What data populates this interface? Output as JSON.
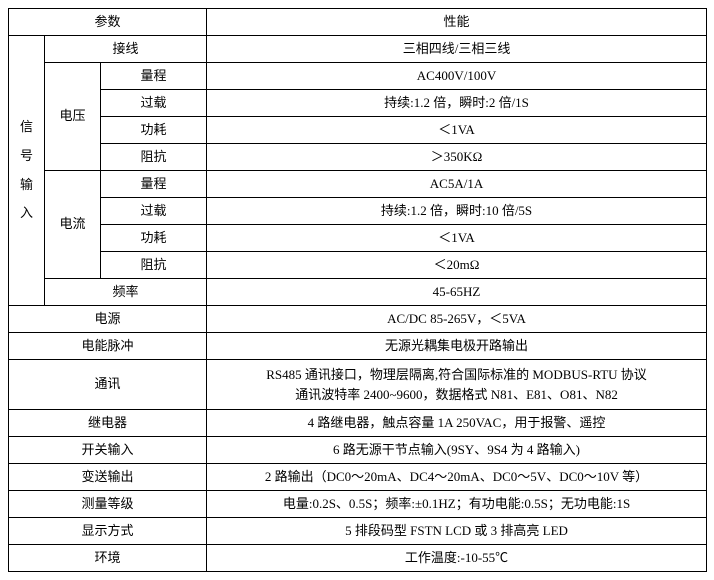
{
  "header": {
    "param": "参数",
    "perf": "性能"
  },
  "signal_input_label": "信\n号\n输\n入",
  "wiring": {
    "label": "接线",
    "value": "三相四线/三相三线"
  },
  "voltage": {
    "label": "电压",
    "range": {
      "label": "量程",
      "value": "AC400V/100V"
    },
    "overload": {
      "label": "过载",
      "value": "持续:1.2 倍，瞬时:2 倍/1S"
    },
    "power": {
      "label": "功耗",
      "value": "＜1VA"
    },
    "impedance": {
      "label": "阻抗",
      "value": "＞350KΩ"
    }
  },
  "current": {
    "label": "电流",
    "range": {
      "label": "量程",
      "value": "AC5A/1A"
    },
    "overload": {
      "label": "过载",
      "value": "持续:1.2 倍，瞬时:10 倍/5S"
    },
    "power": {
      "label": "功耗",
      "value": "＜1VA"
    },
    "impedance": {
      "label": "阻抗",
      "value": "＜20mΩ"
    }
  },
  "freq": {
    "label": "频率",
    "value": "45-65HZ"
  },
  "psu": {
    "label": "电源",
    "value": "AC/DC 85-265V，＜5VA"
  },
  "pulse": {
    "label": "电能脉冲",
    "value": "无源光耦集电极开路输出"
  },
  "comm": {
    "label": "通讯",
    "value": "RS485 通讯接口，物理层隔离,符合国际标准的 MODBUS-RTU 协议\n通讯波特率 2400~9600，数据格式 N81、E81、O81、N82"
  },
  "relay": {
    "label": "继电器",
    "value": "4 路继电器，触点容量 1A 250VAC，用于报警、遥控"
  },
  "swin": {
    "label": "开关输入",
    "value": "6 路无源干节点输入(9SY、9S4 为 4 路输入)"
  },
  "txout": {
    "label": "变送输出",
    "value": "2 路输出（DC0～20mA、DC4～20mA、DC0～5V、DC0～10V 等）"
  },
  "grade": {
    "label": "测量等级",
    "value": "电量:0.2S、0.5S；频率:±0.1HZ；有功电能:0.5S；无功电能:1S"
  },
  "display": {
    "label": "显示方式",
    "value": "5 排段码型 FSTN LCD 或 3 排高亮 LED"
  },
  "env": {
    "label": "环境",
    "value": "工作温度:-10-55℃"
  }
}
